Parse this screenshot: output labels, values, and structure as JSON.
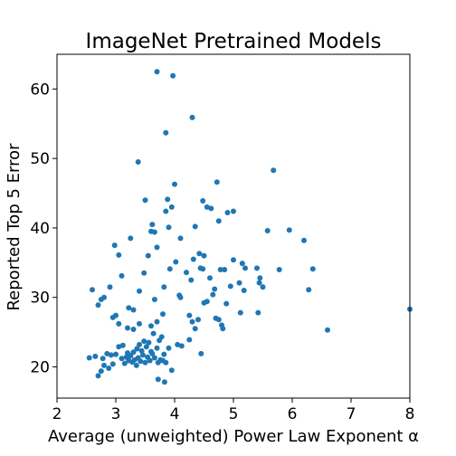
{
  "chart_data": {
    "type": "scatter",
    "title": "ImageNet Pretrained Models",
    "xlabel": "Average (unweighted) Power Law Exponent α",
    "ylabel": "Reported Top 5 Error",
    "xlim": [
      2,
      8
    ],
    "ylim": [
      15.5,
      65
    ],
    "xticks": [
      "2",
      "3",
      "4",
      "5",
      "6",
      "7",
      "8"
    ],
    "yticks": [
      "20",
      "30",
      "40",
      "50",
      "60"
    ],
    "grid": false,
    "marker_color": "#1f77b4",
    "series": [
      {
        "points": [
          [
            2.55,
            21.3
          ],
          [
            2.65,
            21.5
          ],
          [
            2.7,
            18.7
          ],
          [
            2.75,
            19.4
          ],
          [
            2.78,
            21.2
          ],
          [
            2.8,
            20.2
          ],
          [
            2.85,
            21.9
          ],
          [
            2.88,
            19.8
          ],
          [
            2.92,
            21.7
          ],
          [
            2.95,
            20.4
          ],
          [
            3.0,
            21.8
          ],
          [
            3.05,
            22.9
          ],
          [
            3.1,
            21.2
          ],
          [
            3.12,
            23.1
          ],
          [
            3.15,
            20.5
          ],
          [
            3.18,
            21.4
          ],
          [
            3.2,
            22.0
          ],
          [
            3.22,
            20.9
          ],
          [
            3.25,
            21.6
          ],
          [
            3.28,
            20.7
          ],
          [
            3.3,
            22.1
          ],
          [
            3.32,
            21.0
          ],
          [
            3.35,
            20.2
          ],
          [
            3.36,
            22.6
          ],
          [
            3.38,
            21.3
          ],
          [
            3.4,
            23.2
          ],
          [
            3.42,
            20.8
          ],
          [
            3.44,
            22.3
          ],
          [
            3.46,
            21.7
          ],
          [
            3.48,
            23.7
          ],
          [
            3.5,
            20.6
          ],
          [
            3.52,
            22.9
          ],
          [
            3.54,
            21.4
          ],
          [
            3.56,
            23.5
          ],
          [
            3.58,
            20.9
          ],
          [
            3.6,
            22.2
          ],
          [
            3.62,
            21.9
          ],
          [
            3.64,
            24.8
          ],
          [
            3.66,
            21.3
          ],
          [
            3.7,
            22.7
          ],
          [
            3.72,
            20.6
          ],
          [
            3.74,
            23.8
          ],
          [
            3.76,
            21.0
          ],
          [
            3.78,
            24.3
          ],
          [
            3.8,
            20.9
          ],
          [
            3.82,
            21.8
          ],
          [
            3.85,
            20.6
          ],
          [
            3.9,
            22.7
          ],
          [
            3.72,
            18.2
          ],
          [
            3.83,
            17.8
          ],
          [
            3.95,
            19.5
          ],
          [
            3.2,
            25.6
          ],
          [
            3.3,
            25.4
          ],
          [
            3.4,
            26.2
          ],
          [
            3.6,
            25.9
          ],
          [
            3.7,
            26.5
          ],
          [
            2.6,
            31.1
          ],
          [
            2.7,
            28.9
          ],
          [
            2.75,
            29.7
          ],
          [
            2.8,
            30.0
          ],
          [
            2.9,
            31.5
          ],
          [
            2.95,
            27.1
          ],
          [
            3.0,
            27.4
          ],
          [
            3.05,
            26.2
          ],
          [
            3.1,
            33.1
          ],
          [
            2.98,
            37.5
          ],
          [
            3.05,
            36.1
          ],
          [
            3.22,
            28.5
          ],
          [
            3.3,
            28.2
          ],
          [
            3.4,
            30.9
          ],
          [
            3.25,
            38.5
          ],
          [
            3.38,
            49.5
          ],
          [
            3.48,
            33.5
          ],
          [
            3.5,
            44.0
          ],
          [
            3.55,
            36.0
          ],
          [
            3.6,
            39.5
          ],
          [
            3.62,
            40.5
          ],
          [
            3.66,
            29.7
          ],
          [
            3.66,
            39.4
          ],
          [
            3.7,
            37.2
          ],
          [
            3.7,
            62.5
          ],
          [
            3.8,
            27.6
          ],
          [
            3.82,
            31.5
          ],
          [
            3.85,
            42.4
          ],
          [
            3.85,
            53.7
          ],
          [
            3.88,
            44.1
          ],
          [
            3.9,
            40.1
          ],
          [
            3.92,
            34.1
          ],
          [
            3.95,
            43.0
          ],
          [
            3.97,
            61.9
          ],
          [
            4.0,
            46.3
          ],
          [
            4.02,
            35.1
          ],
          [
            4.05,
            23.2
          ],
          [
            4.08,
            30.3
          ],
          [
            4.1,
            30.0
          ],
          [
            4.1,
            38.5
          ],
          [
            4.12,
            23.0
          ],
          [
            4.2,
            33.6
          ],
          [
            4.25,
            23.9
          ],
          [
            4.25,
            27.4
          ],
          [
            4.28,
            32.5
          ],
          [
            4.3,
            26.5
          ],
          [
            4.3,
            55.9
          ],
          [
            4.32,
            35.5
          ],
          [
            4.35,
            25.5
          ],
          [
            4.35,
            40.2
          ],
          [
            4.4,
            26.8
          ],
          [
            4.42,
            36.3
          ],
          [
            4.44,
            34.2
          ],
          [
            4.45,
            21.9
          ],
          [
            4.48,
            34.1
          ],
          [
            4.48,
            43.9
          ],
          [
            4.5,
            29.2
          ],
          [
            4.5,
            36.0
          ],
          [
            4.55,
            43.0
          ],
          [
            4.55,
            29.4
          ],
          [
            4.6,
            32.8
          ],
          [
            4.62,
            42.8
          ],
          [
            4.65,
            30.4
          ],
          [
            4.68,
            31.2
          ],
          [
            4.7,
            27.0
          ],
          [
            4.72,
            46.6
          ],
          [
            4.75,
            26.8
          ],
          [
            4.75,
            41.0
          ],
          [
            4.78,
            34.0
          ],
          [
            4.8,
            26.0
          ],
          [
            4.82,
            25.5
          ],
          [
            4.85,
            34.0
          ],
          [
            4.88,
            29.1
          ],
          [
            4.9,
            42.2
          ],
          [
            4.95,
            31.6
          ],
          [
            5.0,
            42.4
          ],
          [
            5.0,
            35.4
          ],
          [
            5.1,
            32.1
          ],
          [
            5.12,
            27.8
          ],
          [
            5.15,
            34.9
          ],
          [
            5.18,
            31.0
          ],
          [
            5.2,
            34.2
          ],
          [
            5.4,
            34.2
          ],
          [
            5.42,
            27.8
          ],
          [
            5.44,
            32.1
          ],
          [
            5.45,
            32.8
          ],
          [
            5.5,
            31.5
          ],
          [
            5.58,
            39.6
          ],
          [
            5.68,
            48.3
          ],
          [
            5.78,
            34.0
          ],
          [
            5.95,
            39.7
          ],
          [
            6.2,
            38.2
          ],
          [
            6.28,
            31.1
          ],
          [
            6.35,
            34.1
          ],
          [
            6.6,
            25.3
          ],
          [
            8.0,
            28.3
          ]
        ]
      }
    ]
  }
}
